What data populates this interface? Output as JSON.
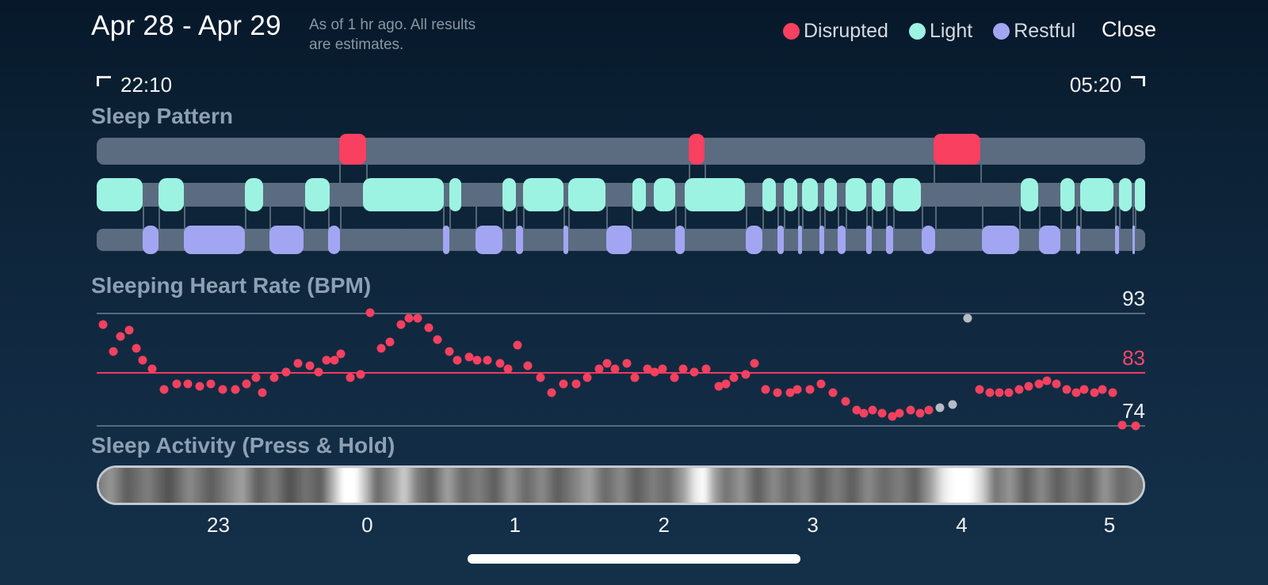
{
  "header": {
    "date_range": "Apr 28 - Apr 29",
    "subtitle_line1": "As of 1 hr ago. All results",
    "subtitle_line2": "are estimates.",
    "close_label": "Close"
  },
  "legend": [
    {
      "label": "Disrupted",
      "color": "#f94060"
    },
    {
      "label": "Light",
      "color": "#9df3e1"
    },
    {
      "label": "Restful",
      "color": "#a2a6f2"
    }
  ],
  "time_range": {
    "start": "22:10",
    "end": "05:20"
  },
  "colors": {
    "background_top": "#06182a",
    "background_bottom": "#143049",
    "track_gray": "#5b6c80",
    "disrupted": "#f94060",
    "light": "#9df3e1",
    "restful": "#a2a6f2",
    "hr_dot": "#f5415f",
    "hr_dot_gray": "#b6bcc3",
    "avg_line": "#ef3a60"
  },
  "chart_data": [
    {
      "type": "area",
      "name": "sleep_pattern",
      "title": "Sleep Pattern",
      "x_range": [
        "22:10",
        "05:20"
      ],
      "tracks": [
        {
          "name": "Disrupted",
          "color": "#f94060",
          "segments_pct": [
            [
              23.1,
              2.6
            ],
            [
              56.5,
              1.5
            ],
            [
              79.8,
              4.5
            ]
          ]
        },
        {
          "name": "Light",
          "color": "#9df3e1",
          "segments_pct": [
            [
              0,
              4.4
            ],
            [
              5.9,
              2.4
            ],
            [
              14.1,
              1.8
            ],
            [
              19.9,
              2.3
            ],
            [
              25.4,
              7.7
            ],
            [
              33.6,
              1.2
            ],
            [
              38.7,
              1.3
            ],
            [
              40.7,
              3.8
            ],
            [
              45.0,
              3.5
            ],
            [
              51.1,
              1.3
            ],
            [
              53.1,
              2.1
            ],
            [
              56.1,
              5.7
            ],
            [
              63.5,
              1.3
            ],
            [
              65.5,
              1.3
            ],
            [
              67.3,
              1.5
            ],
            [
              69.4,
              1.2
            ],
            [
              71.4,
              2.0
            ],
            [
              73.9,
              1.3
            ],
            [
              76.0,
              2.6
            ],
            [
              88.1,
              1.7
            ],
            [
              91.9,
              1.4
            ],
            [
              93.8,
              3.2
            ],
            [
              97.5,
              1.2
            ],
            [
              99.0,
              1.0
            ]
          ]
        },
        {
          "name": "Restful",
          "color": "#a2a6f2",
          "segments_pct": [
            [
              4.4,
              1.5
            ],
            [
              8.3,
              5.8
            ],
            [
              16.5,
              3.2
            ],
            [
              22.1,
              1.1
            ],
            [
              33.0,
              0.6
            ],
            [
              36.1,
              2.6
            ],
            [
              40.0,
              0.7
            ],
            [
              44.5,
              0.5
            ],
            [
              48.6,
              2.4
            ],
            [
              55.2,
              0.9
            ],
            [
              61.9,
              1.6
            ],
            [
              64.9,
              0.6
            ],
            [
              66.9,
              0.4
            ],
            [
              68.9,
              0.5
            ],
            [
              70.7,
              0.7
            ],
            [
              73.4,
              0.5
            ],
            [
              75.3,
              0.7
            ],
            [
              78.7,
              1.3
            ],
            [
              84.4,
              3.6
            ],
            [
              89.9,
              2.0
            ],
            [
              93.4,
              0.4
            ],
            [
              97.1,
              0.4
            ],
            [
              98.8,
              0.2
            ]
          ]
        }
      ]
    },
    {
      "type": "scatter",
      "name": "sleeping_heart_rate",
      "title": "Sleeping Heart Rate (BPM)",
      "ylim": [
        74,
        93
      ],
      "gridlines": [
        {
          "bpm": 93
        },
        {
          "bpm": 83,
          "accent": true
        },
        {
          "bpm": 74
        }
      ],
      "points_x_pct_bpm": [
        [
          0.6,
          91
        ],
        [
          1.6,
          86.5
        ],
        [
          2.3,
          89
        ],
        [
          3.1,
          90
        ],
        [
          3.8,
          87
        ],
        [
          4.4,
          85
        ],
        [
          5.3,
          83.5
        ],
        [
          6.4,
          80
        ],
        [
          7.6,
          81
        ],
        [
          8.7,
          81
        ],
        [
          9.8,
          80.5
        ],
        [
          10.9,
          81
        ],
        [
          12.0,
          80
        ],
        [
          13.2,
          80
        ],
        [
          14.3,
          81
        ],
        [
          15.2,
          82
        ],
        [
          15.8,
          79.5
        ],
        [
          16.9,
          82
        ],
        [
          18.1,
          83
        ],
        [
          19.2,
          84.5
        ],
        [
          20.3,
          84
        ],
        [
          21.2,
          83
        ],
        [
          21.9,
          85
        ],
        [
          22.7,
          85
        ],
        [
          23.3,
          86
        ],
        [
          24.2,
          82
        ],
        [
          25.2,
          82.5
        ],
        [
          26.1,
          93
        ],
        [
          27.1,
          87
        ],
        [
          28.0,
          88
        ],
        [
          29.0,
          91
        ],
        [
          29.8,
          92
        ],
        [
          30.6,
          92
        ],
        [
          31.7,
          90.5
        ],
        [
          32.5,
          88.5
        ],
        [
          33.6,
          86.5
        ],
        [
          34.4,
          85
        ],
        [
          35.5,
          85.5
        ],
        [
          36.3,
          85
        ],
        [
          37.3,
          85
        ],
        [
          38.5,
          84.5
        ],
        [
          39.2,
          83.5
        ],
        [
          40.1,
          87.5
        ],
        [
          41.1,
          84
        ],
        [
          42.3,
          82
        ],
        [
          43.4,
          79.5
        ],
        [
          44.5,
          81
        ],
        [
          45.7,
          81
        ],
        [
          46.8,
          82
        ],
        [
          47.9,
          83.5
        ],
        [
          48.7,
          84.5
        ],
        [
          49.4,
          83.5
        ],
        [
          50.6,
          84.5
        ],
        [
          51.3,
          82
        ],
        [
          52.5,
          83.5
        ],
        [
          53.2,
          83
        ],
        [
          54.0,
          83.5
        ],
        [
          55.1,
          82
        ],
        [
          55.9,
          83.5
        ],
        [
          57.0,
          83
        ],
        [
          58.1,
          83.5
        ],
        [
          59.3,
          80.5
        ],
        [
          60.0,
          81
        ],
        [
          60.8,
          82
        ],
        [
          61.9,
          82.5
        ],
        [
          62.7,
          84.5
        ],
        [
          63.8,
          80
        ],
        [
          64.9,
          79.5
        ],
        [
          66.1,
          79.5
        ],
        [
          66.8,
          80
        ],
        [
          68.0,
          80
        ],
        [
          69.1,
          81
        ],
        [
          70.2,
          79.5
        ],
        [
          71.4,
          78
        ],
        [
          72.5,
          76.5
        ],
        [
          73.2,
          76
        ],
        [
          74.0,
          76.5
        ],
        [
          74.9,
          76
        ],
        [
          75.9,
          75.5
        ],
        [
          76.6,
          76
        ],
        [
          77.6,
          76.5
        ],
        [
          78.5,
          76
        ],
        [
          79.4,
          76.5
        ],
        [
          84.2,
          80
        ],
        [
          85.2,
          79.5
        ],
        [
          86.1,
          79.5
        ],
        [
          87.0,
          79.5
        ],
        [
          88.0,
          80
        ],
        [
          88.9,
          80.5
        ],
        [
          89.9,
          81
        ],
        [
          90.6,
          81.5
        ],
        [
          91.5,
          81
        ],
        [
          92.5,
          80
        ],
        [
          93.4,
          79.5
        ],
        [
          94.2,
          80
        ],
        [
          95.2,
          79.5
        ],
        [
          95.9,
          80
        ],
        [
          96.9,
          79.5
        ],
        [
          97.8,
          74
        ],
        [
          99.1,
          73.8
        ]
      ],
      "gray_points_x_pct_bpm": [
        [
          80.4,
          77
        ],
        [
          81.6,
          77.5
        ],
        [
          83.1,
          92
        ]
      ]
    },
    {
      "type": "heatmap",
      "name": "sleep_activity",
      "title": "Sleep Activity (Press & Hold)",
      "hours": [
        {
          "label": "23",
          "x_pct": 11.6
        },
        {
          "label": "0",
          "x_pct": 25.8
        },
        {
          "label": "1",
          "x_pct": 39.9
        },
        {
          "label": "2",
          "x_pct": 54.1
        },
        {
          "label": "3",
          "x_pct": 68.3
        },
        {
          "label": "4",
          "x_pct": 82.5
        },
        {
          "label": "5",
          "x_pct": 96.6
        }
      ],
      "intensity_stops": [
        [
          0,
          0.4
        ],
        [
          1.5,
          0.55
        ],
        [
          3,
          0.3
        ],
        [
          5,
          0.45
        ],
        [
          7,
          0.25
        ],
        [
          9,
          0.5
        ],
        [
          11,
          0.3
        ],
        [
          12.5,
          0.45
        ],
        [
          14,
          0.6
        ],
        [
          15.5,
          0.3
        ],
        [
          17,
          0.45
        ],
        [
          18.5,
          0.25
        ],
        [
          20,
          0.4
        ],
        [
          21.5,
          0.3
        ],
        [
          22.8,
          0.75
        ],
        [
          23.6,
          1
        ],
        [
          24.8,
          1
        ],
        [
          25.8,
          0.7
        ],
        [
          26.8,
          0.35
        ],
        [
          28.2,
          0.55
        ],
        [
          29.4,
          0.8
        ],
        [
          30.6,
          0.45
        ],
        [
          32,
          0.3
        ],
        [
          33.5,
          0.6
        ],
        [
          35,
          0.35
        ],
        [
          36.5,
          0.45
        ],
        [
          38,
          0.3
        ],
        [
          39.5,
          0.55
        ],
        [
          41,
          0.35
        ],
        [
          42.5,
          0.5
        ],
        [
          44,
          0.3
        ],
        [
          45.5,
          0.45
        ],
        [
          47,
          0.6
        ],
        [
          48.5,
          0.35
        ],
        [
          50,
          0.5
        ],
        [
          51.5,
          0.3
        ],
        [
          53,
          0.45
        ],
        [
          54.5,
          0.35
        ],
        [
          56,
          0.6
        ],
        [
          57,
          0.9
        ],
        [
          57.9,
          1
        ],
        [
          58.9,
          0.6
        ],
        [
          60,
          0.4
        ],
        [
          61.5,
          0.55
        ],
        [
          63,
          0.3
        ],
        [
          64.5,
          0.5
        ],
        [
          66,
          0.35
        ],
        [
          67.5,
          0.5
        ],
        [
          69,
          0.3
        ],
        [
          70.5,
          0.45
        ],
        [
          72,
          0.3
        ],
        [
          73.5,
          0.5
        ],
        [
          75,
          0.35
        ],
        [
          76.5,
          0.45
        ],
        [
          78,
          0.3
        ],
        [
          79.5,
          0.6
        ],
        [
          80.6,
          0.9
        ],
        [
          81.6,
          1
        ],
        [
          83.2,
          1
        ],
        [
          84.4,
          0.8
        ],
        [
          85.6,
          0.4
        ],
        [
          87,
          0.55
        ],
        [
          88.5,
          0.3
        ],
        [
          90,
          0.5
        ],
        [
          91.5,
          0.3
        ],
        [
          93,
          0.45
        ],
        [
          94.5,
          0.3
        ],
        [
          96,
          0.55
        ],
        [
          97.5,
          0.35
        ],
        [
          99,
          0.45
        ],
        [
          100,
          0.4
        ]
      ]
    }
  ]
}
